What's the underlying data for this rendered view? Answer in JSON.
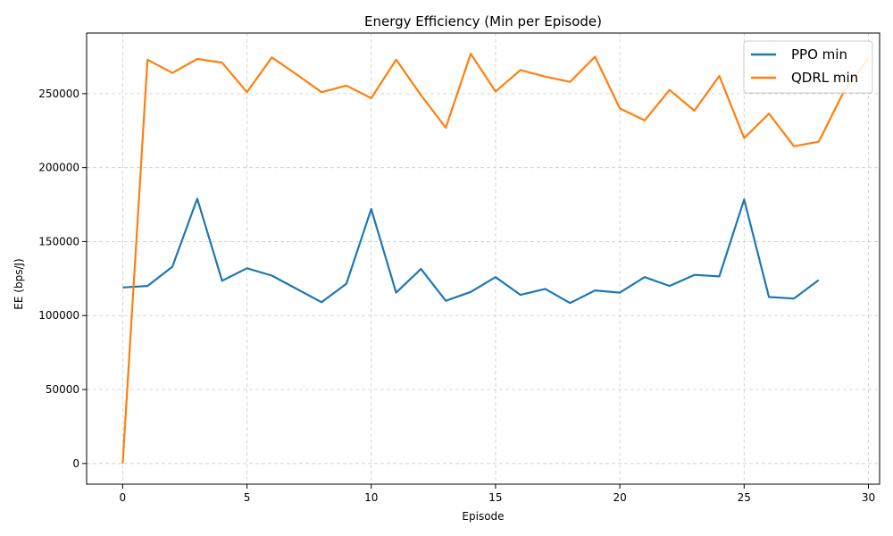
{
  "chart_data": {
    "type": "line",
    "title": "Energy Efficiency (Min per Episode)",
    "xlabel": "Episode",
    "ylabel": "EE (bps/J)",
    "xlim": [
      -1.45,
      30.45
    ],
    "ylim": [
      -14000,
      291000
    ],
    "xticks": [
      0,
      5,
      10,
      15,
      20,
      25,
      30
    ],
    "yticks": [
      0,
      50000,
      100000,
      150000,
      200000,
      250000
    ],
    "grid": true,
    "legend_position": "top-right",
    "series": [
      {
        "name": "PPO min",
        "color": "#1f77b4",
        "x": [
          0,
          1,
          2,
          3,
          4,
          5,
          6,
          7,
          8,
          9,
          10,
          11,
          12,
          13,
          14,
          15,
          16,
          17,
          18,
          19,
          20,
          21,
          22,
          23,
          24,
          25,
          26,
          27,
          28
        ],
        "y": [
          119000,
          120000,
          133000,
          179000,
          123500,
          132000,
          127000,
          118000,
          109000,
          121500,
          172000,
          115500,
          131500,
          110000,
          116000,
          126000,
          114000,
          118000,
          108500,
          117000,
          115500,
          126000,
          120000,
          127500,
          126500,
          178500,
          112500,
          111500,
          124000
        ]
      },
      {
        "name": "QDRL min",
        "color": "#ff7f0e",
        "x": [
          0,
          1,
          2,
          3,
          4,
          5,
          6,
          7,
          8,
          9,
          10,
          11,
          12,
          13,
          14,
          15,
          16,
          17,
          18,
          19,
          20,
          21,
          22,
          23,
          24,
          25,
          26,
          27,
          28,
          29,
          30
        ],
        "y": [
          0,
          273000,
          264000,
          273500,
          271000,
          251000,
          274500,
          263000,
          251000,
          255500,
          247000,
          273000,
          249000,
          227000,
          277000,
          251500,
          266000,
          261500,
          258000,
          275000,
          240000,
          232000,
          252500,
          238500,
          262000,
          220000,
          236500,
          214500,
          217500,
          251000,
          274000
        ]
      }
    ]
  }
}
